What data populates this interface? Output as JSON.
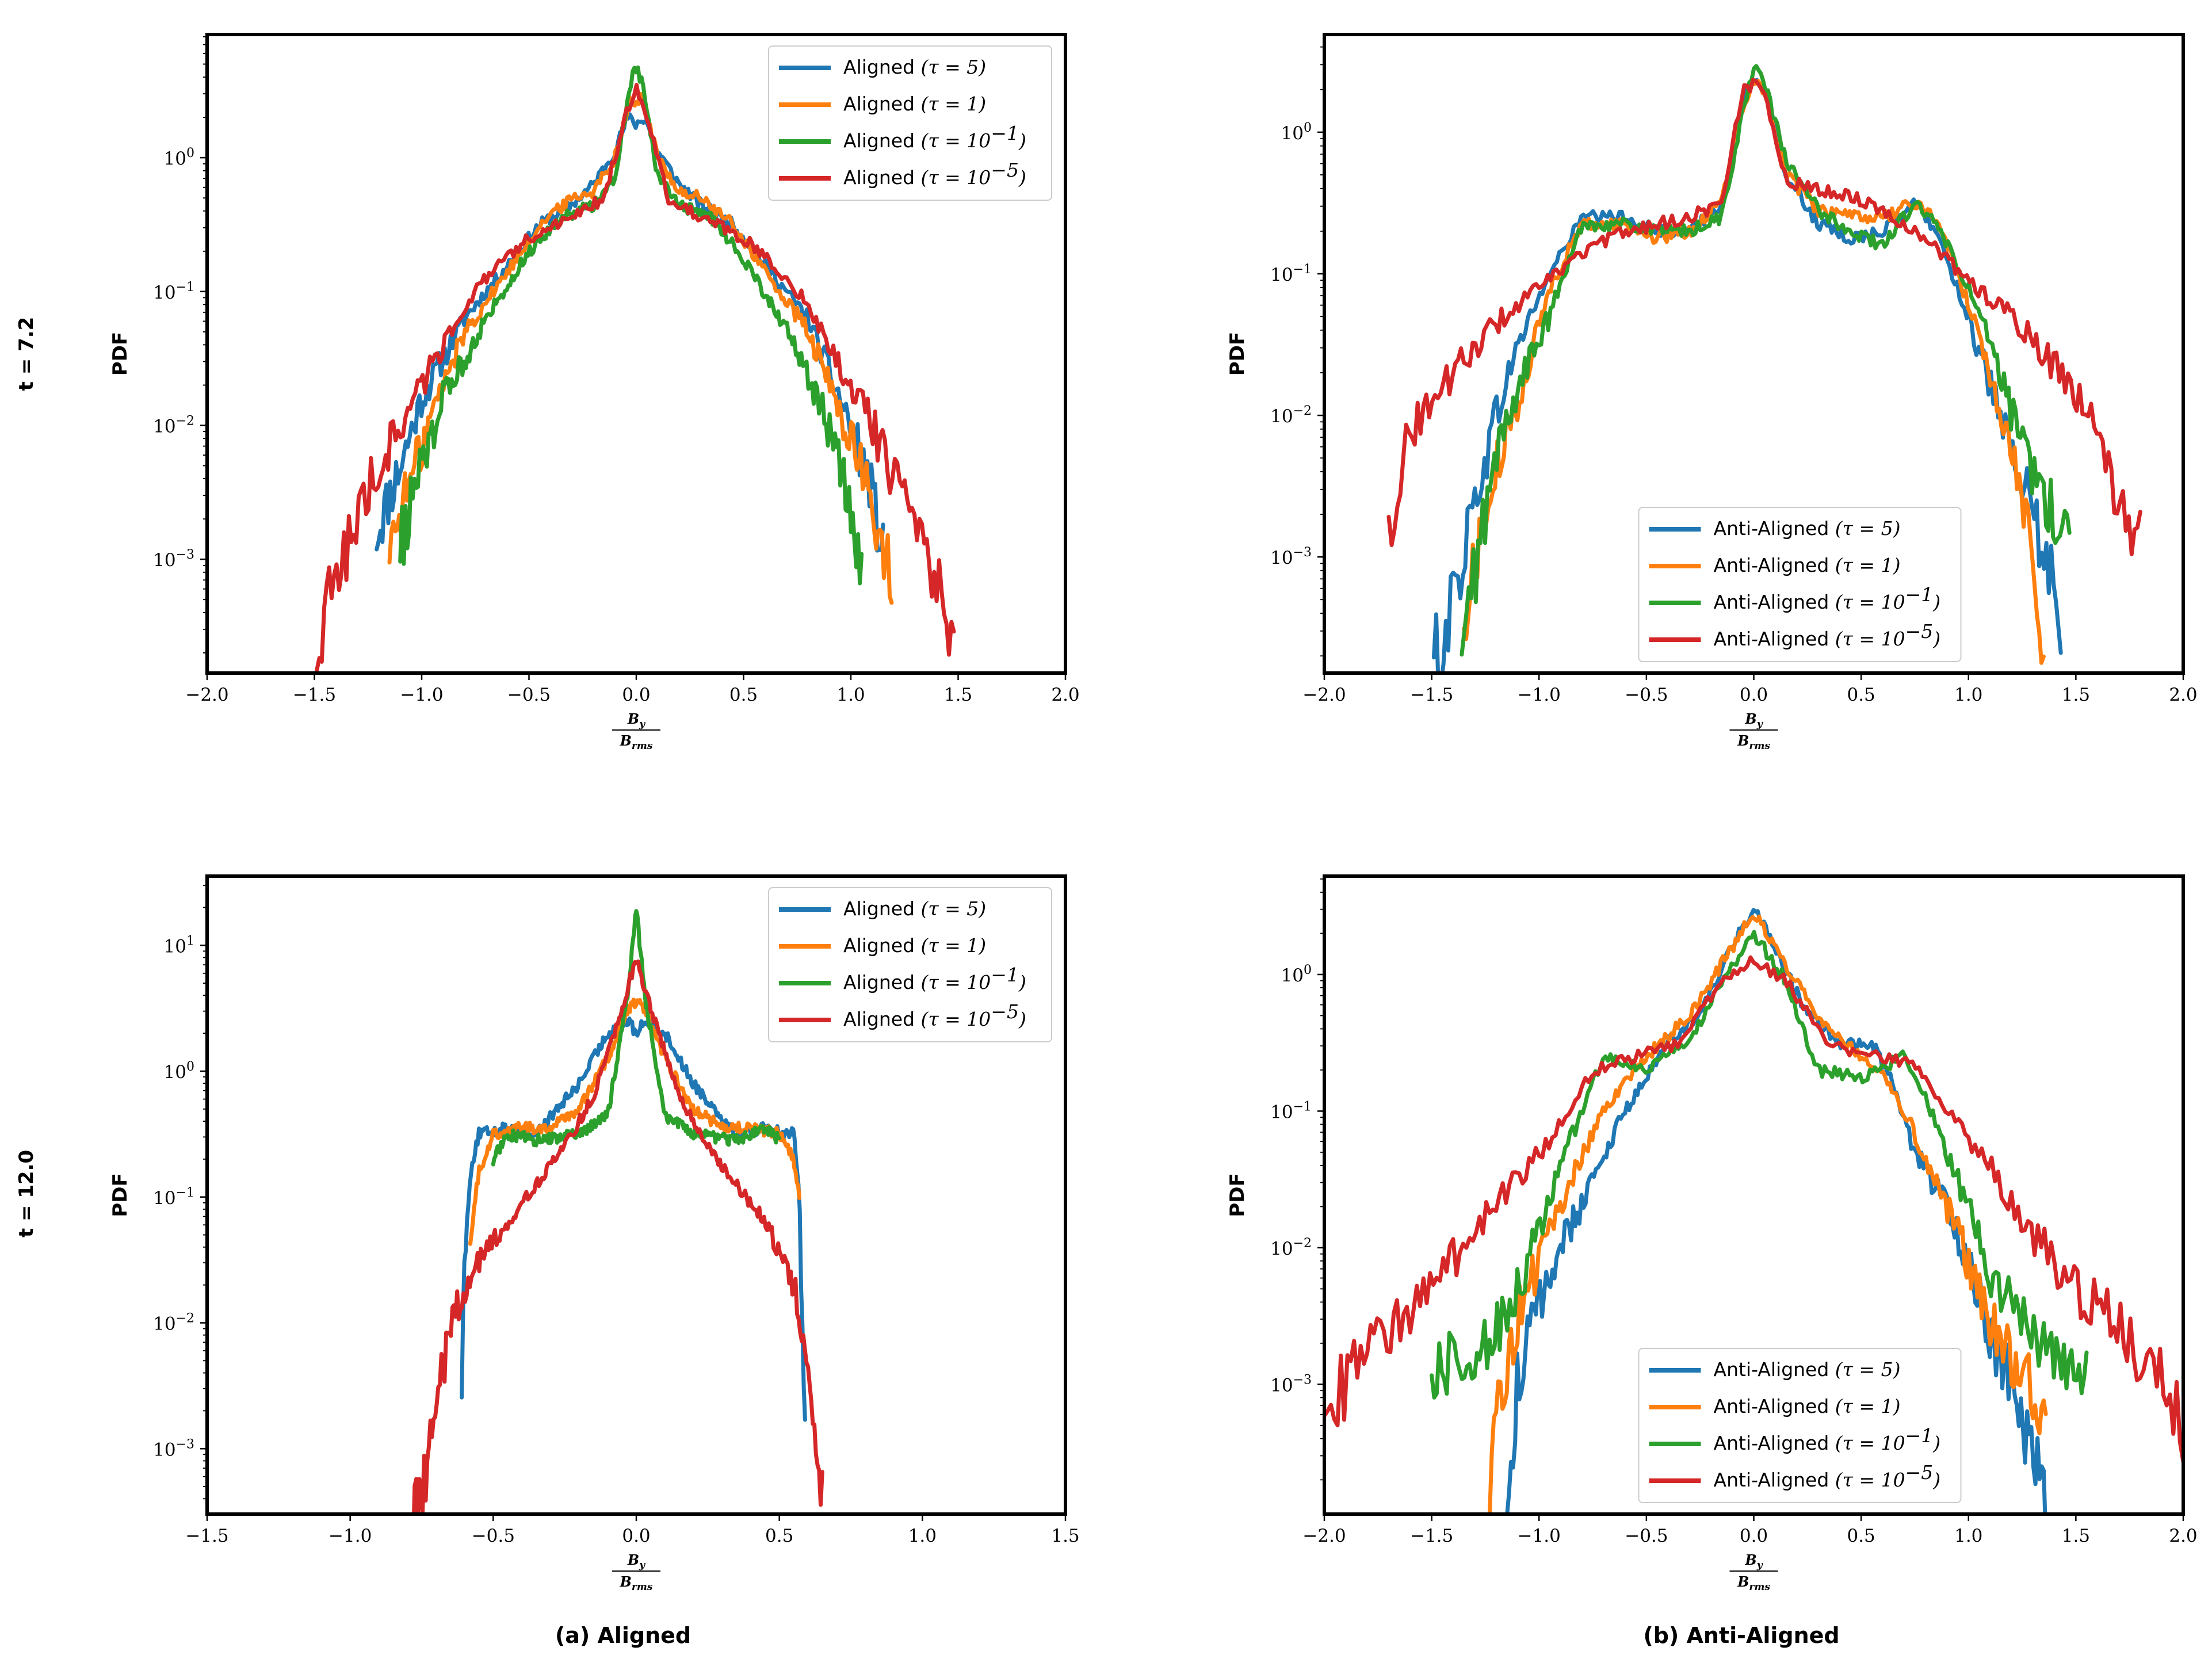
{
  "figure": {
    "row_labels": [
      "t = 7.2",
      "t = 12.0"
    ],
    "captions": [
      "(a) Aligned",
      "(b) Anti-Aligned"
    ],
    "ylabel": "PDF",
    "xlabel_num": "B",
    "xlabel_num_sub": "y",
    "xlabel_den": "B",
    "xlabel_den_sub": "rms"
  },
  "colors": {
    "c0": "#1f77b4",
    "c1": "#ff7f0e",
    "c2": "#2ca02c",
    "c3": "#d62728"
  },
  "chart_data": [
    {
      "id": "p00",
      "type": "line",
      "yscale": "log",
      "xlim": [
        -2.0,
        2.0
      ],
      "ylim_log10": [
        -3.85,
        0.92
      ],
      "xticks": [
        "−2.0",
        "−1.5",
        "−1.0",
        "−0.5",
        "0.0",
        "0.5",
        "1.0",
        "1.5",
        "2.0"
      ],
      "xtick_values": [
        -2.0,
        -1.5,
        -1.0,
        -0.5,
        0.0,
        0.5,
        1.0,
        1.5,
        2.0
      ],
      "ytick_exponents": [
        0,
        -1,
        -2,
        -3
      ],
      "ytick_base": "10",
      "legend_loc": "upper right",
      "series": [
        {
          "name": "Aligned",
          "tau": "5",
          "tau_exp": "",
          "color_key": "c0",
          "x": [
            -1.21,
            -1.1,
            -1.0,
            -0.8,
            -0.6,
            -0.45,
            -0.3,
            -0.2,
            -0.1,
            -0.04,
            0.0,
            0.04,
            0.1,
            0.2,
            0.3,
            0.45,
            0.6,
            0.8,
            0.9,
            1.0,
            1.1,
            1.15
          ],
          "log10y": [
            -2.8,
            -2.3,
            -1.8,
            -1.2,
            -0.8,
            -0.5,
            -0.35,
            -0.2,
            0.05,
            0.3,
            0.25,
            0.3,
            0.05,
            -0.2,
            -0.35,
            -0.5,
            -0.8,
            -1.2,
            -1.6,
            -2.0,
            -2.5,
            -3.0
          ]
        },
        {
          "name": "Aligned",
          "tau": "1",
          "tau_exp": "",
          "color_key": "c1",
          "x": [
            -1.15,
            -1.05,
            -0.95,
            -0.8,
            -0.6,
            -0.45,
            -0.3,
            -0.2,
            -0.1,
            -0.03,
            0.0,
            0.03,
            0.1,
            0.2,
            0.3,
            0.45,
            0.6,
            0.8,
            0.9,
            1.0,
            1.1,
            1.19
          ],
          "log10y": [
            -2.9,
            -2.4,
            -1.9,
            -1.3,
            -0.85,
            -0.5,
            -0.3,
            -0.25,
            0.0,
            0.45,
            0.4,
            0.45,
            0.0,
            -0.25,
            -0.3,
            -0.5,
            -0.85,
            -1.3,
            -1.7,
            -2.1,
            -2.6,
            -3.2
          ]
        },
        {
          "name": "Aligned",
          "tau": "10",
          "tau_exp": "−1",
          "color_key": "c2",
          "x": [
            -1.1,
            -1.0,
            -0.9,
            -0.7,
            -0.5,
            -0.35,
            -0.2,
            -0.1,
            -0.03,
            0.0,
            0.03,
            0.1,
            0.2,
            0.35,
            0.5,
            0.7,
            0.85,
            0.95,
            1.0,
            1.05
          ],
          "log10y": [
            -2.9,
            -2.3,
            -1.8,
            -1.2,
            -0.7,
            -0.45,
            -0.35,
            -0.15,
            0.55,
            0.68,
            0.55,
            -0.15,
            -0.35,
            -0.45,
            -0.75,
            -1.3,
            -1.8,
            -2.3,
            -2.7,
            -3.0
          ]
        },
        {
          "name": "Aligned",
          "tau": "10",
          "tau_exp": "−5",
          "color_key": "c3",
          "x": [
            -1.5,
            -1.4,
            -1.3,
            -1.2,
            -1.1,
            -1.0,
            -0.9,
            -0.8,
            -0.7,
            -0.5,
            -0.3,
            -0.15,
            -0.05,
            0.0,
            0.05,
            0.15,
            0.3,
            0.5,
            0.7,
            0.8,
            0.9,
            1.0,
            1.1,
            1.2,
            1.3,
            1.4,
            1.48
          ],
          "log10y": [
            -3.8,
            -3.1,
            -2.7,
            -2.3,
            -2.0,
            -1.7,
            -1.4,
            -1.1,
            -0.9,
            -0.6,
            -0.45,
            -0.3,
            0.3,
            0.55,
            0.3,
            -0.3,
            -0.45,
            -0.6,
            -0.9,
            -1.1,
            -1.4,
            -1.7,
            -2.0,
            -2.4,
            -2.8,
            -3.2,
            -3.8
          ]
        }
      ]
    },
    {
      "id": "p01",
      "type": "line",
      "yscale": "log",
      "xlim": [
        -2.0,
        2.0
      ],
      "ylim_log10": [
        -3.82,
        0.69
      ],
      "xticks": [
        "−2.0",
        "−1.5",
        "−1.0",
        "−0.5",
        "0.0",
        "0.5",
        "1.0",
        "1.5",
        "2.0"
      ],
      "xtick_values": [
        -2.0,
        -1.5,
        -1.0,
        -0.5,
        0.0,
        0.5,
        1.0,
        1.5,
        2.0
      ],
      "ytick_exponents": [
        0,
        -1,
        -2,
        -3
      ],
      "ytick_base": "10",
      "legend_loc": "lower center",
      "series": [
        {
          "name": "Anti-Aligned",
          "tau": "5",
          "tau_exp": "",
          "color_key": "c0",
          "x": [
            -1.49,
            -1.4,
            -1.3,
            -1.2,
            -1.1,
            -0.95,
            -0.8,
            -0.6,
            -0.45,
            -0.3,
            -0.15,
            -0.05,
            0.0,
            0.05,
            0.15,
            0.3,
            0.45,
            0.6,
            0.75,
            0.85,
            1.0,
            1.1,
            1.2,
            1.3,
            1.43
          ],
          "log10y": [
            -3.8,
            -3.3,
            -2.6,
            -2.0,
            -1.5,
            -1.0,
            -0.6,
            -0.6,
            -0.7,
            -0.7,
            -0.5,
            0.2,
            0.4,
            0.3,
            -0.3,
            -0.65,
            -0.75,
            -0.7,
            -0.5,
            -0.7,
            -1.3,
            -1.8,
            -2.3,
            -2.7,
            -3.4
          ]
        },
        {
          "name": "Anti-Aligned",
          "tau": "1",
          "tau_exp": "",
          "color_key": "c1",
          "x": [
            -1.35,
            -1.3,
            -1.2,
            -1.1,
            -0.95,
            -0.8,
            -0.6,
            -0.45,
            -0.3,
            -0.15,
            -0.05,
            0.0,
            0.05,
            0.15,
            0.3,
            0.45,
            0.6,
            0.75,
            0.85,
            1.0,
            1.1,
            1.2,
            1.3,
            1.35
          ],
          "log10y": [
            -3.6,
            -3.0,
            -2.4,
            -1.9,
            -1.1,
            -0.65,
            -0.65,
            -0.75,
            -0.7,
            -0.5,
            0.2,
            0.38,
            0.3,
            -0.3,
            -0.55,
            -0.6,
            -0.6,
            -0.5,
            -0.6,
            -1.2,
            -1.7,
            -2.2,
            -2.9,
            -3.6
          ]
        },
        {
          "name": "Anti-Aligned",
          "tau": "10",
          "tau_exp": "−1",
          "color_key": "c2",
          "x": [
            -1.36,
            -1.3,
            -1.2,
            -1.1,
            -0.95,
            -0.8,
            -0.6,
            -0.45,
            -0.3,
            -0.15,
            -0.05,
            0.0,
            0.05,
            0.15,
            0.3,
            0.45,
            0.6,
            0.75,
            0.85,
            1.0,
            1.1,
            1.2,
            1.3,
            1.4,
            1.47
          ],
          "log10y": [
            -3.8,
            -3.1,
            -2.3,
            -1.8,
            -1.3,
            -0.65,
            -0.65,
            -0.7,
            -0.7,
            -0.6,
            0.15,
            0.45,
            0.35,
            -0.2,
            -0.55,
            -0.7,
            -0.8,
            -0.5,
            -0.65,
            -1.1,
            -1.5,
            -2.0,
            -2.4,
            -2.7,
            -2.9
          ]
        },
        {
          "name": "Anti-Aligned",
          "tau": "10",
          "tau_exp": "−5",
          "color_key": "c3",
          "x": [
            -1.7,
            -1.6,
            -1.5,
            -1.4,
            -1.2,
            -1.0,
            -0.8,
            -0.6,
            -0.45,
            -0.3,
            -0.15,
            -0.05,
            0.0,
            0.05,
            0.15,
            0.3,
            0.45,
            0.6,
            0.8,
            1.0,
            1.2,
            1.4,
            1.6,
            1.7,
            1.8
          ],
          "log10y": [
            -2.8,
            -2.1,
            -1.9,
            -1.7,
            -1.35,
            -1.1,
            -0.85,
            -0.7,
            -0.65,
            -0.6,
            -0.5,
            0.3,
            0.35,
            0.3,
            -0.35,
            -0.4,
            -0.45,
            -0.55,
            -0.75,
            -1.05,
            -1.3,
            -1.65,
            -2.1,
            -2.6,
            -2.9
          ]
        }
      ]
    },
    {
      "id": "p10",
      "type": "line",
      "yscale": "log",
      "xlim": [
        -1.5,
        1.5
      ],
      "ylim_log10": [
        -3.52,
        1.55
      ],
      "xticks": [
        "−1.5",
        "−1.0",
        "−0.5",
        "0.0",
        "0.5",
        "1.0",
        "1.5"
      ],
      "xtick_values": [
        -1.5,
        -1.0,
        -0.5,
        0.0,
        0.5,
        1.0,
        1.5
      ],
      "ytick_exponents": [
        1,
        0,
        -1,
        -2,
        -3
      ],
      "ytick_base": "10",
      "legend_loc": "upper right",
      "series": [
        {
          "name": "Aligned",
          "tau": "5",
          "tau_exp": "",
          "color_key": "c0",
          "x": [
            -0.61,
            -0.6,
            -0.58,
            -0.55,
            -0.45,
            -0.35,
            -0.2,
            -0.1,
            -0.03,
            0.0,
            0.03,
            0.1,
            0.2,
            0.35,
            0.45,
            0.55,
            0.57,
            0.58,
            0.59
          ],
          "log10y": [
            -2.4,
            -1.5,
            -0.8,
            -0.5,
            -0.45,
            -0.5,
            -0.1,
            0.3,
            0.4,
            0.3,
            0.4,
            0.3,
            -0.1,
            -0.5,
            -0.45,
            -0.5,
            -1.0,
            -2.0,
            -2.6
          ]
        },
        {
          "name": "Aligned",
          "tau": "1",
          "tau_exp": "",
          "color_key": "c1",
          "x": [
            -0.58,
            -0.55,
            -0.5,
            -0.4,
            -0.3,
            -0.2,
            -0.1,
            -0.03,
            0.0,
            0.03,
            0.1,
            0.2,
            0.3,
            0.4,
            0.5,
            0.55,
            0.57
          ],
          "log10y": [
            -1.3,
            -0.8,
            -0.5,
            -0.45,
            -0.45,
            -0.3,
            0.1,
            0.5,
            0.55,
            0.5,
            0.1,
            -0.3,
            -0.45,
            -0.45,
            -0.5,
            -0.7,
            -1.0
          ]
        },
        {
          "name": "Aligned",
          "tau": "10",
          "tau_exp": "−1",
          "color_key": "c2",
          "x": [
            -0.5,
            -0.45,
            -0.35,
            -0.2,
            -0.1,
            -0.03,
            0.0,
            0.03,
            0.1,
            0.2,
            0.35,
            0.45,
            0.5
          ],
          "log10y": [
            -0.7,
            -0.5,
            -0.55,
            -0.5,
            -0.35,
            0.6,
            1.3,
            0.6,
            -0.35,
            -0.5,
            -0.55,
            -0.45,
            -0.55
          ]
        },
        {
          "name": "Aligned",
          "tau": "10",
          "tau_exp": "−5",
          "color_key": "c3",
          "x": [
            -0.78,
            -0.72,
            -0.65,
            -0.55,
            -0.45,
            -0.35,
            -0.25,
            -0.15,
            -0.05,
            0.0,
            0.05,
            0.15,
            0.25,
            0.35,
            0.45,
            0.52,
            0.56,
            0.59,
            0.62,
            0.65
          ],
          "log10y": [
            -3.5,
            -3.0,
            -2.0,
            -1.5,
            -1.2,
            -0.9,
            -0.6,
            -0.2,
            0.5,
            0.9,
            0.5,
            -0.2,
            -0.6,
            -0.9,
            -1.2,
            -1.5,
            -1.8,
            -2.3,
            -2.9,
            -3.5
          ]
        }
      ]
    },
    {
      "id": "p11",
      "type": "line",
      "yscale": "log",
      "xlim": [
        -2.0,
        2.0
      ],
      "ylim_log10": [
        -3.95,
        0.72
      ],
      "xticks": [
        "−2.0",
        "−1.5",
        "−1.0",
        "−0.5",
        "0.0",
        "0.5",
        "1.0",
        "1.5",
        "2.0"
      ],
      "xtick_values": [
        -2.0,
        -1.5,
        -1.0,
        -0.5,
        0.0,
        0.5,
        1.0,
        1.5,
        2.0
      ],
      "ytick_exponents": [
        0,
        -1,
        -2,
        -3
      ],
      "ytick_base": "10",
      "legend_loc": "lower center",
      "series": [
        {
          "name": "Anti-Aligned",
          "tau": "5",
          "tau_exp": "",
          "color_key": "c0",
          "x": [
            -1.15,
            -1.1,
            -1.0,
            -0.9,
            -0.75,
            -0.6,
            -0.4,
            -0.25,
            -0.1,
            0.0,
            0.1,
            0.25,
            0.4,
            0.55,
            0.65,
            0.75,
            0.9,
            1.0,
            1.1,
            1.2,
            1.3,
            1.36
          ],
          "log10y": [
            -3.9,
            -3.0,
            -2.4,
            -2.0,
            -1.5,
            -1.0,
            -0.5,
            -0.3,
            0.2,
            0.5,
            0.2,
            -0.3,
            -0.5,
            -0.5,
            -0.8,
            -1.3,
            -1.7,
            -2.1,
            -2.6,
            -3.0,
            -3.5,
            -3.9
          ]
        },
        {
          "name": "Anti-Aligned",
          "tau": "1",
          "tau_exp": "",
          "color_key": "c1",
          "x": [
            -1.23,
            -1.2,
            -1.1,
            -1.0,
            -0.85,
            -0.7,
            -0.5,
            -0.3,
            -0.1,
            0.0,
            0.1,
            0.3,
            0.5,
            0.6,
            0.7,
            0.85,
            1.0,
            1.1,
            1.2,
            1.3,
            1.36
          ],
          "log10y": [
            -3.9,
            -3.2,
            -2.5,
            -2.1,
            -1.5,
            -1.0,
            -0.6,
            -0.3,
            0.2,
            0.45,
            0.2,
            -0.3,
            -0.6,
            -0.7,
            -1.0,
            -1.5,
            -2.1,
            -2.5,
            -2.8,
            -3.0,
            -3.2
          ]
        },
        {
          "name": "Anti-Aligned",
          "tau": "10",
          "tau_exp": "−1",
          "color_key": "c2",
          "x": [
            -1.5,
            -1.4,
            -1.3,
            -1.2,
            -1.1,
            -1.0,
            -0.9,
            -0.7,
            -0.5,
            -0.3,
            -0.15,
            0.0,
            0.15,
            0.3,
            0.5,
            0.7,
            0.8,
            0.9,
            1.0,
            1.1,
            1.2,
            1.3,
            1.4,
            1.55
          ],
          "log10y": [
            -2.9,
            -2.85,
            -2.8,
            -2.6,
            -2.3,
            -1.9,
            -1.4,
            -0.6,
            -0.7,
            -0.5,
            -0.05,
            0.3,
            -0.05,
            -0.7,
            -0.75,
            -0.6,
            -0.9,
            -1.3,
            -1.7,
            -2.2,
            -2.4,
            -2.7,
            -2.8,
            -2.9
          ]
        },
        {
          "name": "Anti-Aligned",
          "tau": "10",
          "tau_exp": "−5",
          "color_key": "c3",
          "x": [
            -2.0,
            -1.9,
            -1.8,
            -1.7,
            -1.5,
            -1.3,
            -1.1,
            -0.9,
            -0.75,
            -0.55,
            -0.35,
            -0.15,
            0.0,
            0.15,
            0.35,
            0.55,
            0.75,
            0.9,
            1.1,
            1.3,
            1.5,
            1.7,
            1.85,
            1.95,
            2.0
          ],
          "log10y": [
            -3.2,
            -3.0,
            -2.75,
            -2.6,
            -2.3,
            -1.9,
            -1.5,
            -1.1,
            -0.7,
            -0.6,
            -0.5,
            -0.05,
            0.1,
            -0.05,
            -0.5,
            -0.6,
            -0.65,
            -1.0,
            -1.4,
            -1.9,
            -2.3,
            -2.55,
            -2.9,
            -3.1,
            -3.3
          ]
        }
      ]
    }
  ]
}
